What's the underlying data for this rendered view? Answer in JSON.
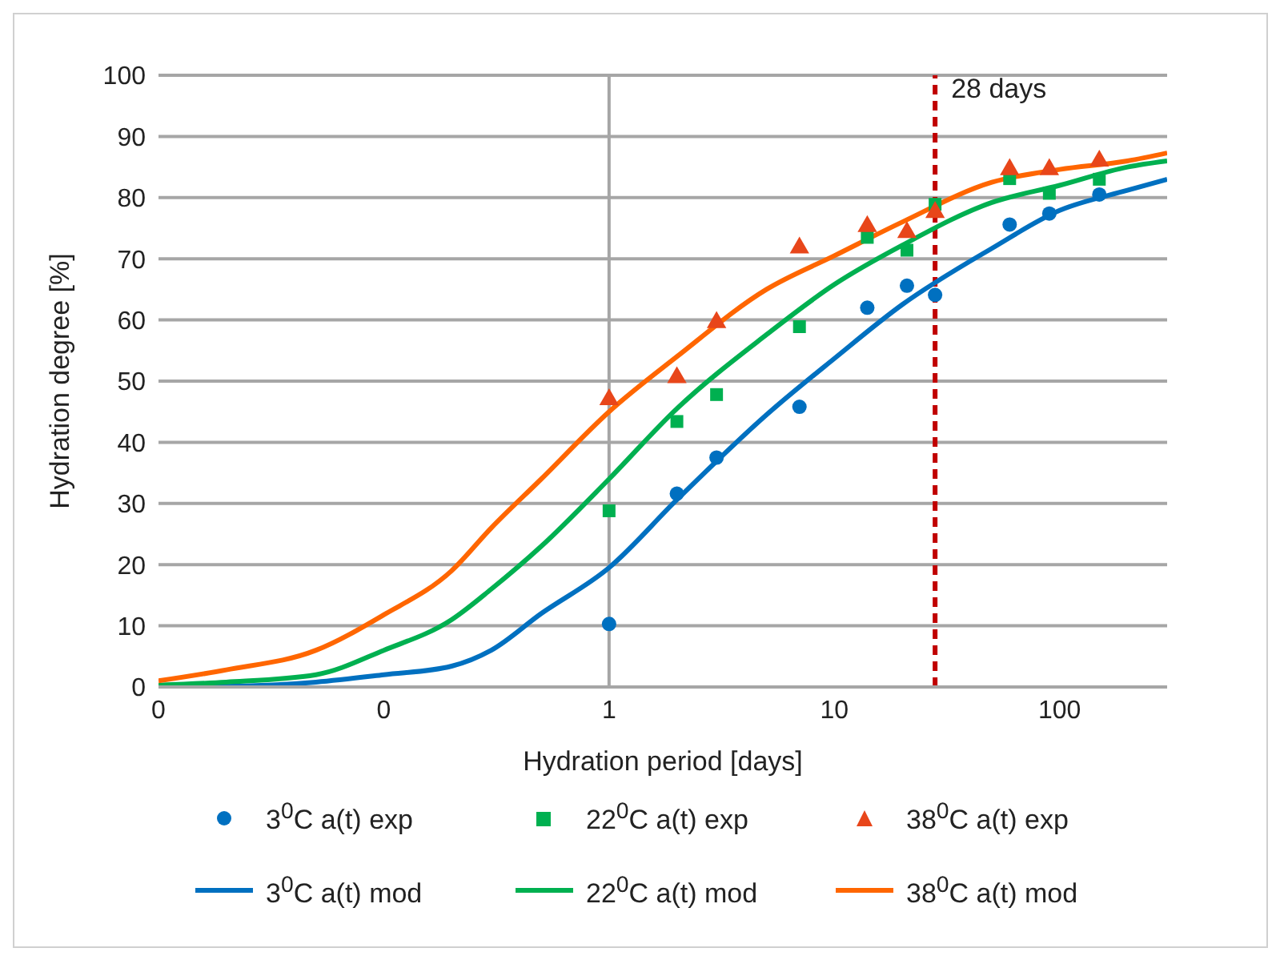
{
  "chart_data": {
    "type": "scatter",
    "xlabel": "Hydration period [days]",
    "ylabel": "Hydration degree [%]",
    "log": "x",
    "xlim": [
      0.01,
      300
    ],
    "xticks": [
      {
        "value": 0.01,
        "label": "0"
      },
      {
        "value": 0.1,
        "label": "0"
      },
      1,
      10,
      100
    ],
    "ylim": [
      0,
      100
    ],
    "yticks": [
      0,
      10,
      20,
      30,
      40,
      50,
      60,
      70,
      80,
      90,
      100
    ],
    "grid": "y",
    "legend": "bottom",
    "ref_lines": [
      {
        "axis": "x",
        "value": 1,
        "label": null,
        "color": "#a6a6a6",
        "line_style": "solid"
      },
      {
        "axis": "x",
        "value": 28,
        "label": "28 days",
        "color": "#c00000",
        "line_style": "dashed"
      }
    ],
    "series": [
      {
        "name": "3$^{0}$C a(t) exp",
        "marker": "circle",
        "color": "#0070c0",
        "x": [
          1,
          2,
          3,
          7,
          14,
          21,
          28,
          60,
          90,
          150
        ],
        "values": [
          10.3,
          31.6,
          37.5,
          45.8,
          62,
          65.6,
          64.1,
          75.6,
          77.4,
          80.5
        ]
      },
      {
        "name": "22$^{0}$C a(t) exp",
        "marker": "square",
        "color": "#00b050",
        "x": [
          1,
          2,
          3,
          7,
          14,
          21,
          28,
          60,
          90,
          150
        ],
        "values": [
          28.8,
          43.4,
          47.8,
          58.9,
          73.5,
          71.4,
          78.9,
          83.1,
          80.7,
          83
        ]
      },
      {
        "name": "38$^{0}$C a(t) exp",
        "marker": "triangle",
        "color": "#e8461a",
        "x": [
          1,
          2,
          3,
          7,
          14,
          21,
          28,
          60,
          90,
          150
        ],
        "values": [
          47,
          50.6,
          59.6,
          71.8,
          75.3,
          74.3,
          77.6,
          84.6,
          84.6,
          86
        ]
      },
      {
        "name": "3$^{0}$C a(t) mod",
        "type": "line",
        "marker": "none",
        "color": "#0070c0",
        "x": [
          0.01,
          0.02,
          0.05,
          0.1,
          0.2,
          0.3,
          0.5,
          1,
          2,
          5,
          10,
          20,
          50,
          100,
          200,
          300
        ],
        "values": [
          0,
          0.1,
          0.8,
          2,
          3.4,
          6,
          12,
          19.5,
          30.6,
          44.5,
          53.7,
          62.5,
          71.7,
          77.9,
          81.2,
          83
        ]
      },
      {
        "name": "22$^{0}$C a(t) mod",
        "type": "line",
        "marker": "none",
        "color": "#00b050",
        "x": [
          0.01,
          0.02,
          0.05,
          0.1,
          0.2,
          0.3,
          0.5,
          1,
          2,
          5,
          10,
          20,
          50,
          100,
          200,
          300
        ],
        "values": [
          0.3,
          0.8,
          2,
          6,
          11,
          16,
          23,
          34,
          45.5,
          57.6,
          65.8,
          72.2,
          79.2,
          82,
          85,
          86
        ]
      },
      {
        "name": "38$^{0}$C a(t) mod",
        "type": "line",
        "marker": "none",
        "color": "#ff6600",
        "x": [
          0.01,
          0.02,
          0.05,
          0.1,
          0.2,
          0.3,
          0.5,
          1,
          2,
          5,
          10,
          20,
          50,
          100,
          200,
          300
        ],
        "values": [
          1,
          2.8,
          6,
          11.8,
          19,
          26,
          34,
          45,
          54,
          65,
          70.5,
          76,
          82.5,
          84.6,
          86,
          87.3
        ]
      }
    ]
  }
}
